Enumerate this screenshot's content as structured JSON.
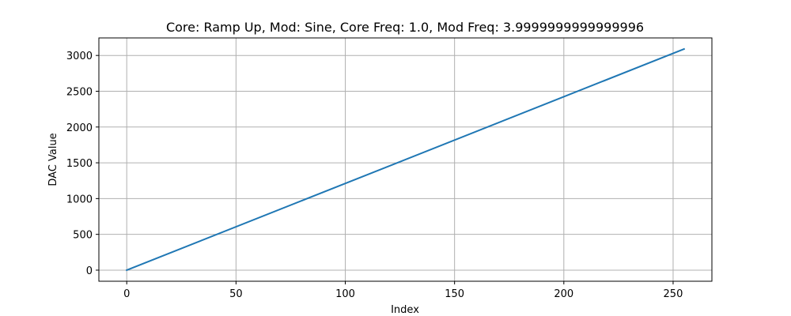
{
  "chart_data": {
    "type": "line",
    "title": "Core: Ramp Up, Mod: Sine, Core Freq: 1.0, Mod Freq: 3.9999999999999996",
    "xlabel": "Index",
    "ylabel": "DAC Value",
    "xlim": [
      -12.75,
      267.75
    ],
    "ylim": [
      -155,
      3245
    ],
    "xticks": [
      0,
      50,
      100,
      150,
      200,
      250
    ],
    "yticks": [
      0,
      500,
      1000,
      1500,
      2000,
      2500,
      3000
    ],
    "grid": true,
    "series": [
      {
        "color": "#1f77b4",
        "x": [
          0,
          255
        ],
        "y": [
          0,
          3090
        ]
      }
    ]
  }
}
